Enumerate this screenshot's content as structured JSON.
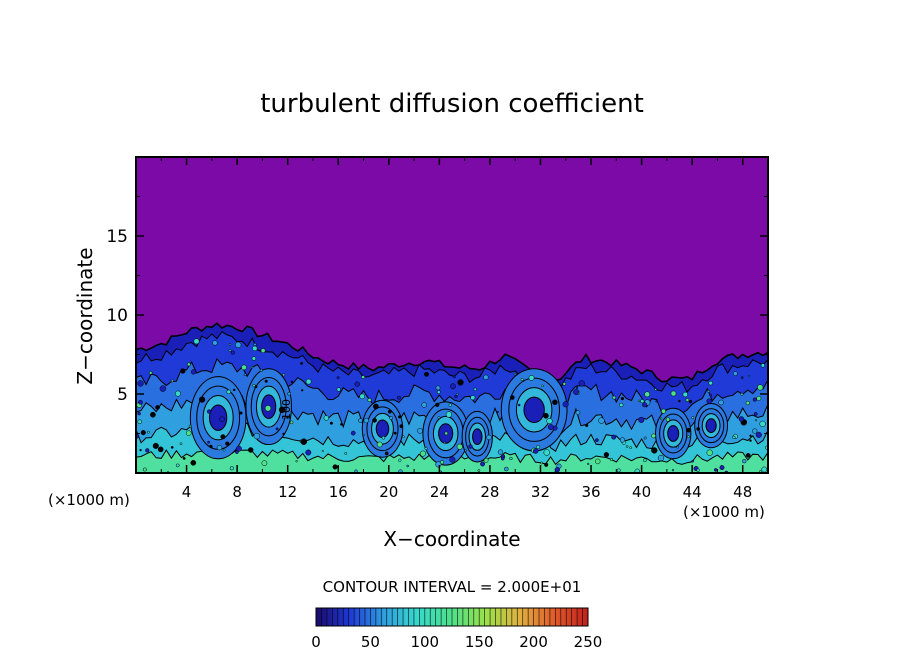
{
  "chart_data": {
    "type": "heatmap",
    "title": "turbulent diffusion coefficient",
    "xlabel": "X−coordinate",
    "ylabel": "Z−coordinate",
    "x_unit_left": "(×1000 m)",
    "x_unit_right": "(×1000 m)",
    "xlim": [
      0,
      50
    ],
    "ylim": [
      0,
      20
    ],
    "x_ticks": [
      4,
      8,
      12,
      16,
      20,
      24,
      28,
      32,
      36,
      40,
      44,
      48
    ],
    "y_ticks": [
      5,
      10,
      15
    ],
    "contour_interval_text": "CONTOUR INTERVAL = 2.000E+01",
    "contour_label": "100",
    "colorbar": {
      "min": 0,
      "max": 250,
      "ticks": [
        0,
        50,
        100,
        150,
        200,
        250
      ],
      "colors": [
        "#1a0a6b",
        "#1f3ad6",
        "#2f9fe0",
        "#37d9c9",
        "#4fe08a",
        "#9be04a",
        "#e0b040",
        "#e05a2a",
        "#c0201e"
      ]
    },
    "background_value": 0,
    "background_color": "#7b0aa6",
    "turbulent_layer_top": [
      7.8,
      8.2,
      9.0,
      9.4,
      9.2,
      8.6,
      8.0,
      7.2,
      6.8,
      6.6,
      6.9,
      7.1,
      6.7,
      6.6,
      7.4,
      6.4,
      5.9,
      7.3,
      7.0,
      6.6,
      6.0,
      5.9,
      7.1,
      7.5,
      7.7
    ]
  }
}
